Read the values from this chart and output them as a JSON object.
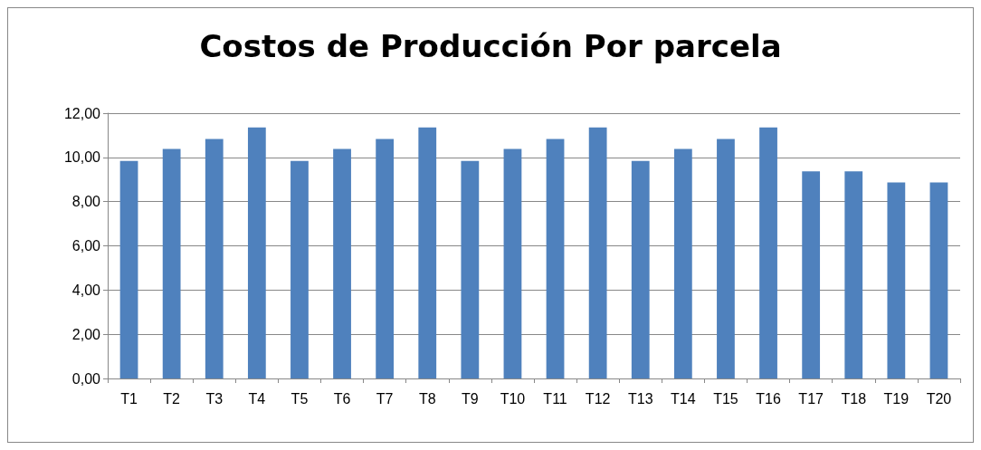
{
  "chart_data": {
    "type": "bar",
    "title": "Costos de Producción Por parcela",
    "categories": [
      "T1",
      "T2",
      "T3",
      "T4",
      "T5",
      "T6",
      "T7",
      "T8",
      "T9",
      "T10",
      "T11",
      "T12",
      "T13",
      "T14",
      "T15",
      "T16",
      "T17",
      "T18",
      "T19",
      "T20"
    ],
    "values": [
      9.84,
      10.38,
      10.83,
      11.35,
      9.84,
      10.38,
      10.83,
      11.35,
      9.84,
      10.38,
      10.83,
      11.35,
      9.84,
      10.38,
      10.83,
      11.35,
      9.37,
      9.37,
      8.87,
      8.87
    ],
    "color": "#4f81bd",
    "ylim": [
      0,
      12
    ],
    "yticks": [
      {
        "value": 0,
        "label": "0,00"
      },
      {
        "value": 2,
        "label": "2,00"
      },
      {
        "value": 4,
        "label": "4,00"
      },
      {
        "value": 6,
        "label": "6,00"
      },
      {
        "value": 8,
        "label": "8,00"
      },
      {
        "value": 10,
        "label": "10,00"
      },
      {
        "value": 12,
        "label": "12,00"
      }
    ],
    "grid": "y"
  }
}
